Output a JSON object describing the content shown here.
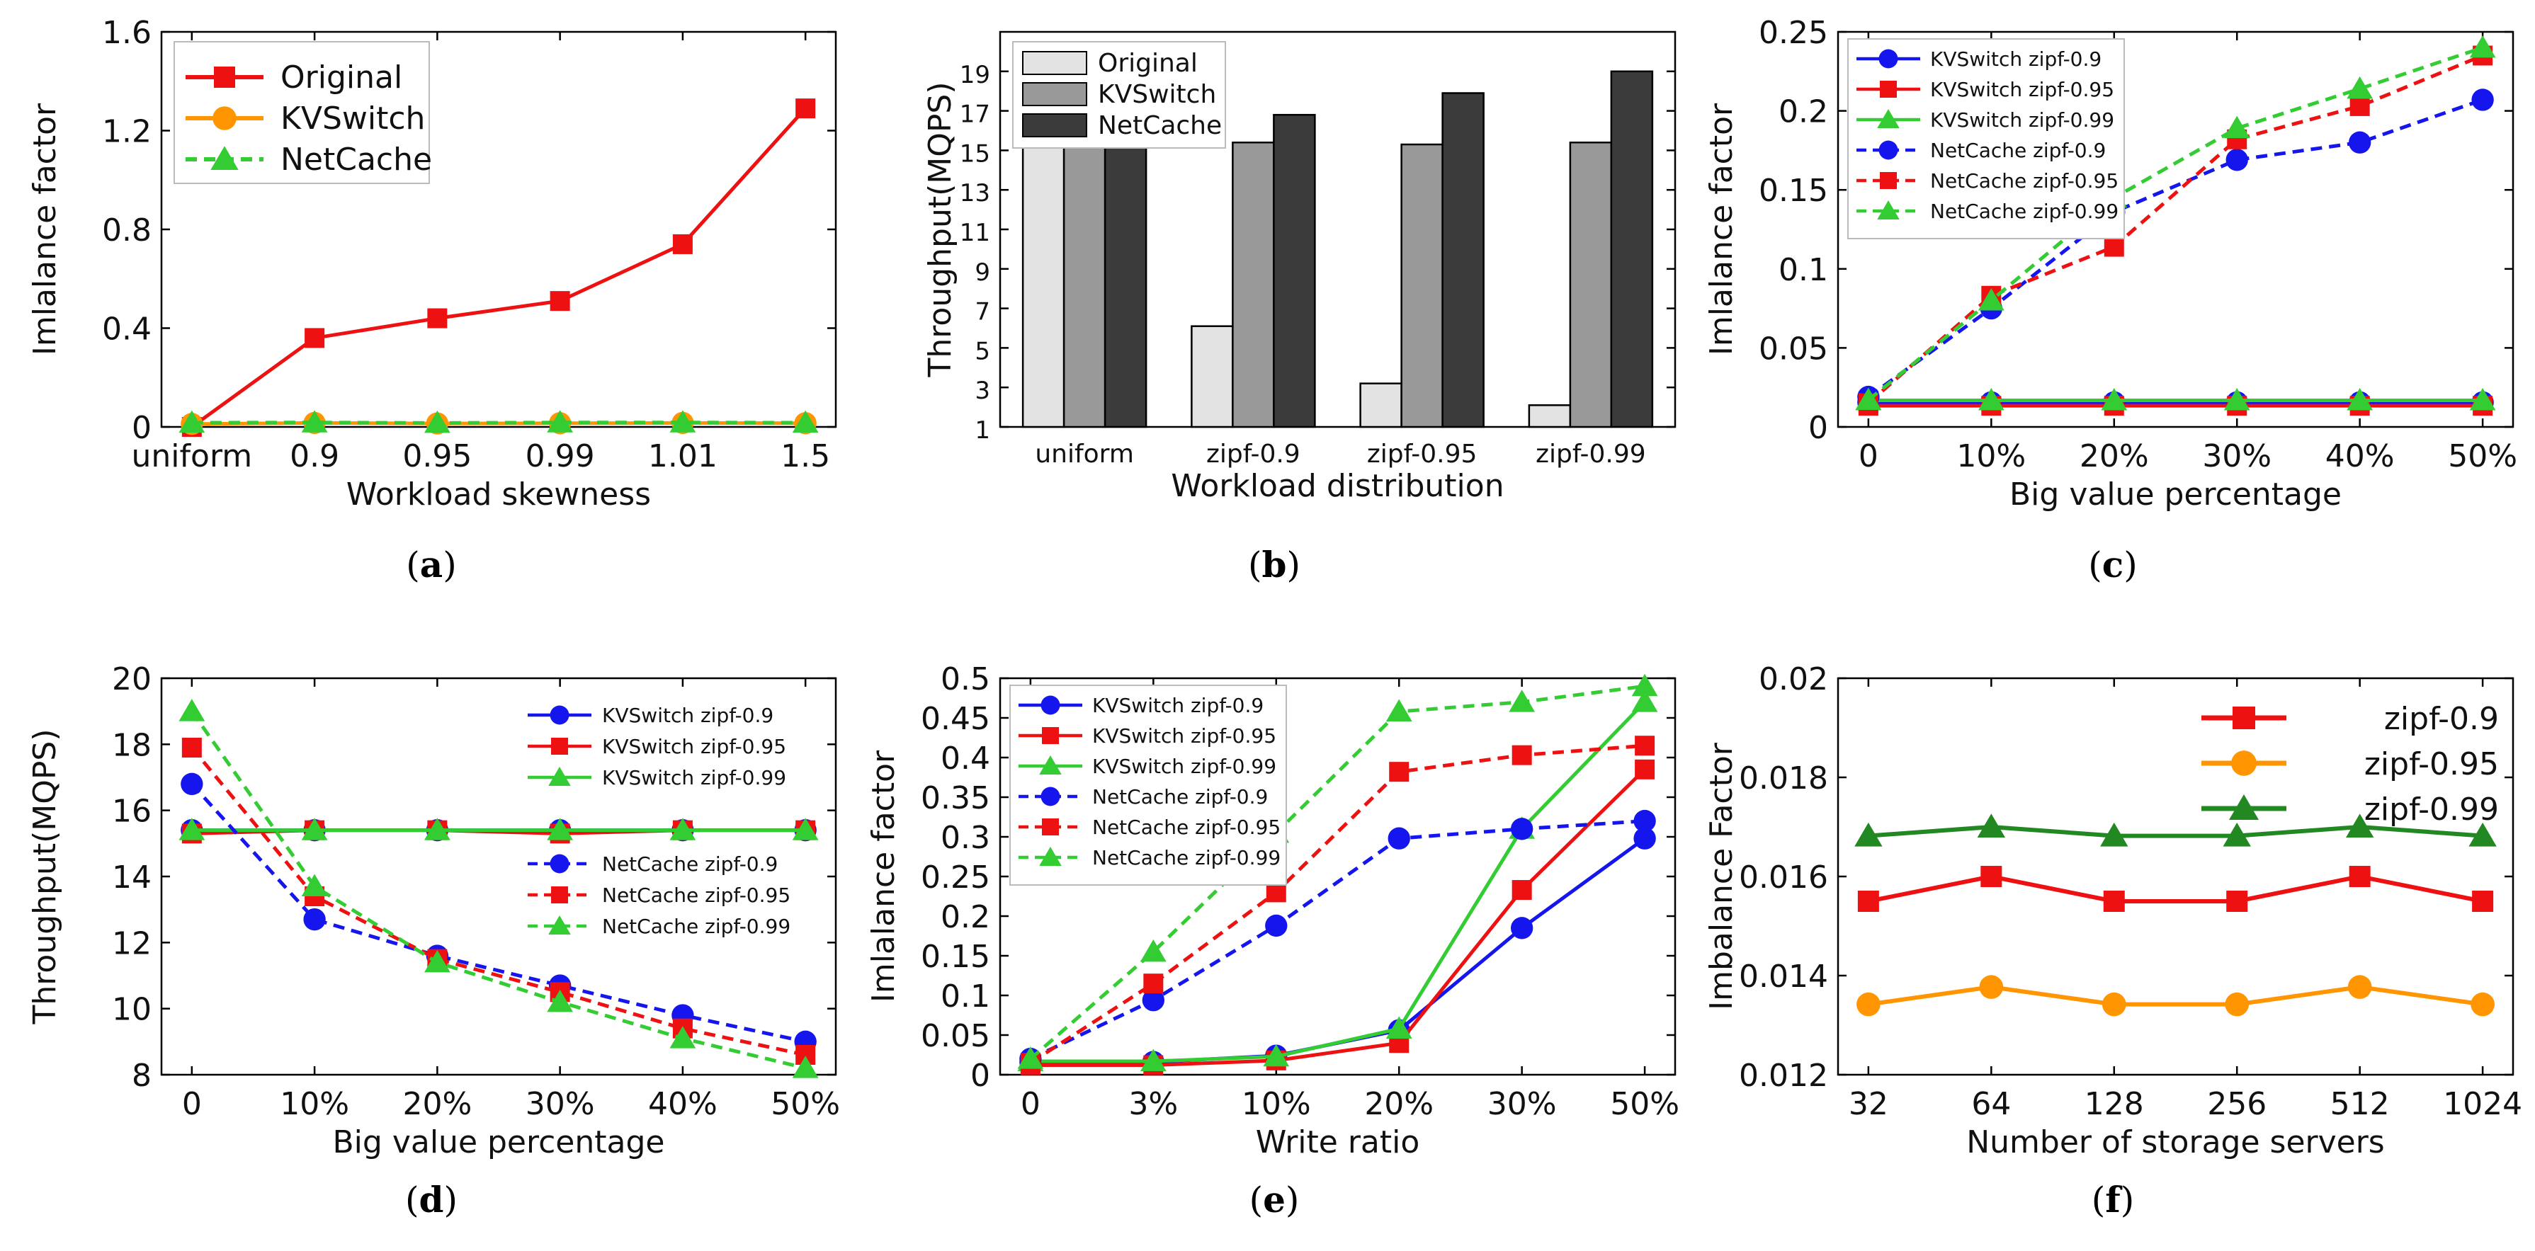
{
  "colors": {
    "red": "#ee1111",
    "blue": "#1515ee",
    "green": "#33cc33",
    "orange": "#ff9500",
    "dkgreen": "#228822",
    "light": "#e3e3e3",
    "mid": "#999999",
    "dark": "#3b3b3b"
  },
  "chart_data": [
    {
      "id": "a",
      "type": "line",
      "caption": "a",
      "xlabel": "Workload skewness",
      "ylabel": "Imlalance factor",
      "categories": [
        "uniform",
        "0.9",
        "0.95",
        "0.99",
        "1.01",
        "1.5"
      ],
      "ylim": [
        0,
        1.6
      ],
      "yticks": [
        0,
        0.4,
        0.8,
        1.2,
        1.6
      ],
      "ytick_labels": [
        "0",
        "0.4",
        "0.8",
        "1.2",
        "1.6"
      ],
      "legend": "top-left",
      "series": [
        {
          "name": "Original",
          "color": "red",
          "marker": "square",
          "dash": false,
          "values": [
            0.0,
            0.36,
            0.44,
            0.51,
            0.74,
            1.29
          ]
        },
        {
          "name": "KVSwitch",
          "color": "orange",
          "marker": "circle",
          "dash": false,
          "values": [
            0.012,
            0.016,
            0.014,
            0.015,
            0.016,
            0.015
          ]
        },
        {
          "name": "NetCache",
          "color": "green",
          "marker": "triangle",
          "dash": true,
          "values": [
            0.017,
            0.018,
            0.016,
            0.018,
            0.018,
            0.017
          ]
        }
      ]
    },
    {
      "id": "b",
      "type": "bar",
      "caption": "b",
      "xlabel": "Workload distribution",
      "ylabel": "Throughput(MQPS)",
      "categories": [
        "uniform",
        "zipf-0.9",
        "zipf-0.95",
        "zipf-0.99"
      ],
      "ylim": [
        1,
        21
      ],
      "yticks": [
        1,
        3,
        5,
        7,
        9,
        11,
        13,
        15,
        17,
        19
      ],
      "ytick_labels": [
        "1",
        "3",
        "5",
        "7",
        "9",
        "11",
        "13",
        "15",
        "17",
        "19"
      ],
      "legend": "top-left",
      "series": [
        {
          "name": "Original",
          "color": "light",
          "values": [
            15.4,
            6.1,
            3.2,
            2.1
          ]
        },
        {
          "name": "KVSwitch",
          "color": "mid",
          "values": [
            15.4,
            15.4,
            15.3,
            15.4
          ]
        },
        {
          "name": "NetCache",
          "color": "dark",
          "values": [
            15.4,
            16.8,
            17.9,
            19.0
          ]
        }
      ]
    },
    {
      "id": "c",
      "type": "line",
      "caption": "c",
      "xlabel": "Big value percentage",
      "ylabel": "Imlalance factor",
      "categories": [
        "0",
        "10%",
        "20%",
        "30%",
        "40%",
        "50%"
      ],
      "ylim": [
        0,
        0.25
      ],
      "yticks": [
        0,
        0.05,
        0.1,
        0.15,
        0.2,
        0.25
      ],
      "ytick_labels": [
        "0",
        "0.05",
        "0.1",
        "0.15",
        "0.2",
        "0.25"
      ],
      "legend": "top-left",
      "series": [
        {
          "name": "KVSwitch zipf-0.9",
          "color": "blue",
          "marker": "circle",
          "dash": false,
          "values": [
            0.0155,
            0.0155,
            0.0155,
            0.0155,
            0.0155,
            0.0155
          ]
        },
        {
          "name": "KVSwitch zipf-0.95",
          "color": "red",
          "marker": "square",
          "dash": false,
          "values": [
            0.0134,
            0.0134,
            0.0134,
            0.0134,
            0.0134,
            0.0134
          ]
        },
        {
          "name": "KVSwitch zipf-0.99",
          "color": "green",
          "marker": "triangle",
          "dash": false,
          "values": [
            0.0168,
            0.0168,
            0.0168,
            0.0168,
            0.0168,
            0.0168
          ]
        },
        {
          "name": "NetCache zipf-0.9",
          "color": "blue",
          "marker": "circle",
          "dash": true,
          "values": [
            0.019,
            0.075,
            0.136,
            0.169,
            0.18,
            0.207
          ]
        },
        {
          "name": "NetCache zipf-0.95",
          "color": "red",
          "marker": "square",
          "dash": true,
          "values": [
            0.015,
            0.083,
            0.114,
            0.182,
            0.203,
            0.235
          ]
        },
        {
          "name": "NetCache zipf-0.99",
          "color": "green",
          "marker": "triangle",
          "dash": true,
          "values": [
            0.017,
            0.08,
            0.145,
            0.189,
            0.214,
            0.24
          ]
        }
      ]
    },
    {
      "id": "d",
      "type": "line",
      "caption": "d",
      "xlabel": "Big value percentage",
      "ylabel": "Throughput(MQPS)",
      "categories": [
        "0",
        "10%",
        "20%",
        "30%",
        "40%",
        "50%"
      ],
      "ylim": [
        8,
        20
      ],
      "yticks": [
        8,
        10,
        12,
        14,
        16,
        18,
        20
      ],
      "ytick_labels": [
        "8",
        "10",
        "12",
        "14",
        "16",
        "18",
        "20"
      ],
      "legend": "top-right-split",
      "series": [
        {
          "name": "KVSwitch zipf-0.9",
          "color": "blue",
          "marker": "circle",
          "dash": false,
          "values": [
            15.4,
            15.4,
            15.4,
            15.4,
            15.4,
            15.4
          ]
        },
        {
          "name": "KVSwitch zipf-0.95",
          "color": "red",
          "marker": "square",
          "dash": false,
          "values": [
            15.3,
            15.4,
            15.4,
            15.3,
            15.4,
            15.4
          ]
        },
        {
          "name": "KVSwitch zipf-0.99",
          "color": "green",
          "marker": "triangle",
          "dash": false,
          "values": [
            15.4,
            15.4,
            15.4,
            15.4,
            15.4,
            15.4
          ]
        },
        {
          "name": "NetCache zipf-0.9",
          "color": "blue",
          "marker": "circle",
          "dash": true,
          "values": [
            16.8,
            12.7,
            11.6,
            10.7,
            9.8,
            9.0
          ]
        },
        {
          "name": "NetCache zipf-0.95",
          "color": "red",
          "marker": "square",
          "dash": true,
          "values": [
            17.9,
            13.4,
            11.5,
            10.5,
            9.4,
            8.6
          ]
        },
        {
          "name": "NetCache zipf-0.99",
          "color": "green",
          "marker": "triangle",
          "dash": true,
          "values": [
            19.0,
            13.7,
            11.4,
            10.2,
            9.1,
            8.2
          ]
        }
      ]
    },
    {
      "id": "e",
      "type": "line",
      "caption": "e",
      "xlabel": "Write ratio",
      "ylabel": "Imlalance factor",
      "categories": [
        "0",
        "3%",
        "10%",
        "20%",
        "30%",
        "50%"
      ],
      "ylim": [
        0,
        0.5
      ],
      "yticks": [
        0,
        0.05,
        0.1,
        0.15,
        0.2,
        0.25,
        0.3,
        0.35,
        0.4,
        0.45,
        0.5
      ],
      "ytick_labels": [
        "0",
        "0.05",
        "0.1",
        "0.15",
        "0.2",
        "0.25",
        "0.3",
        "0.35",
        "0.4",
        "0.45",
        "0.5"
      ],
      "legend": "top-left",
      "series": [
        {
          "name": "KVSwitch zipf-0.9",
          "color": "blue",
          "marker": "circle",
          "dash": false,
          "values": [
            0.016,
            0.016,
            0.024,
            0.056,
            0.185,
            0.298
          ]
        },
        {
          "name": "KVSwitch zipf-0.95",
          "color": "red",
          "marker": "square",
          "dash": false,
          "values": [
            0.012,
            0.012,
            0.018,
            0.04,
            0.233,
            0.385
          ]
        },
        {
          "name": "KVSwitch zipf-0.99",
          "color": "green",
          "marker": "triangle",
          "dash": false,
          "values": [
            0.017,
            0.017,
            0.023,
            0.058,
            0.31,
            0.47
          ]
        },
        {
          "name": "NetCache zipf-0.9",
          "color": "blue",
          "marker": "circle",
          "dash": true,
          "values": [
            0.02,
            0.094,
            0.188,
            0.298,
            0.31,
            0.32
          ]
        },
        {
          "name": "NetCache zipf-0.95",
          "color": "red",
          "marker": "square",
          "dash": true,
          "values": [
            0.015,
            0.115,
            0.23,
            0.382,
            0.403,
            0.415
          ]
        },
        {
          "name": "NetCache zipf-0.99",
          "color": "green",
          "marker": "triangle",
          "dash": true,
          "values": [
            0.02,
            0.155,
            0.305,
            0.458,
            0.47,
            0.49
          ]
        }
      ]
    },
    {
      "id": "f",
      "type": "line",
      "caption": "f",
      "xlabel": "Number of storage servers",
      "ylabel": "Imbalance Factor",
      "categories": [
        "32",
        "64",
        "128",
        "256",
        "512",
        "1024"
      ],
      "ylim": [
        0.012,
        0.02
      ],
      "yticks": [
        0.012,
        0.014,
        0.016,
        0.018,
        0.02
      ],
      "ytick_labels": [
        "0.012",
        "0.014",
        "0.016",
        "0.018",
        "0.02"
      ],
      "legend": "top-right",
      "series": [
        {
          "name": "zipf-0.9",
          "color": "red",
          "marker": "square",
          "dash": false,
          "values": [
            0.0155,
            0.016,
            0.0155,
            0.0155,
            0.016,
            0.0155
          ]
        },
        {
          "name": "zipf-0.95",
          "color": "orange",
          "marker": "circle",
          "dash": false,
          "values": [
            0.01342,
            0.01377,
            0.01342,
            0.01342,
            0.01377,
            0.01342
          ]
        },
        {
          "name": "zipf-0.99",
          "color": "dkgreen",
          "marker": "triangle",
          "dash": false,
          "values": [
            0.01682,
            0.017,
            0.01682,
            0.01682,
            0.017,
            0.01682
          ]
        }
      ]
    }
  ]
}
